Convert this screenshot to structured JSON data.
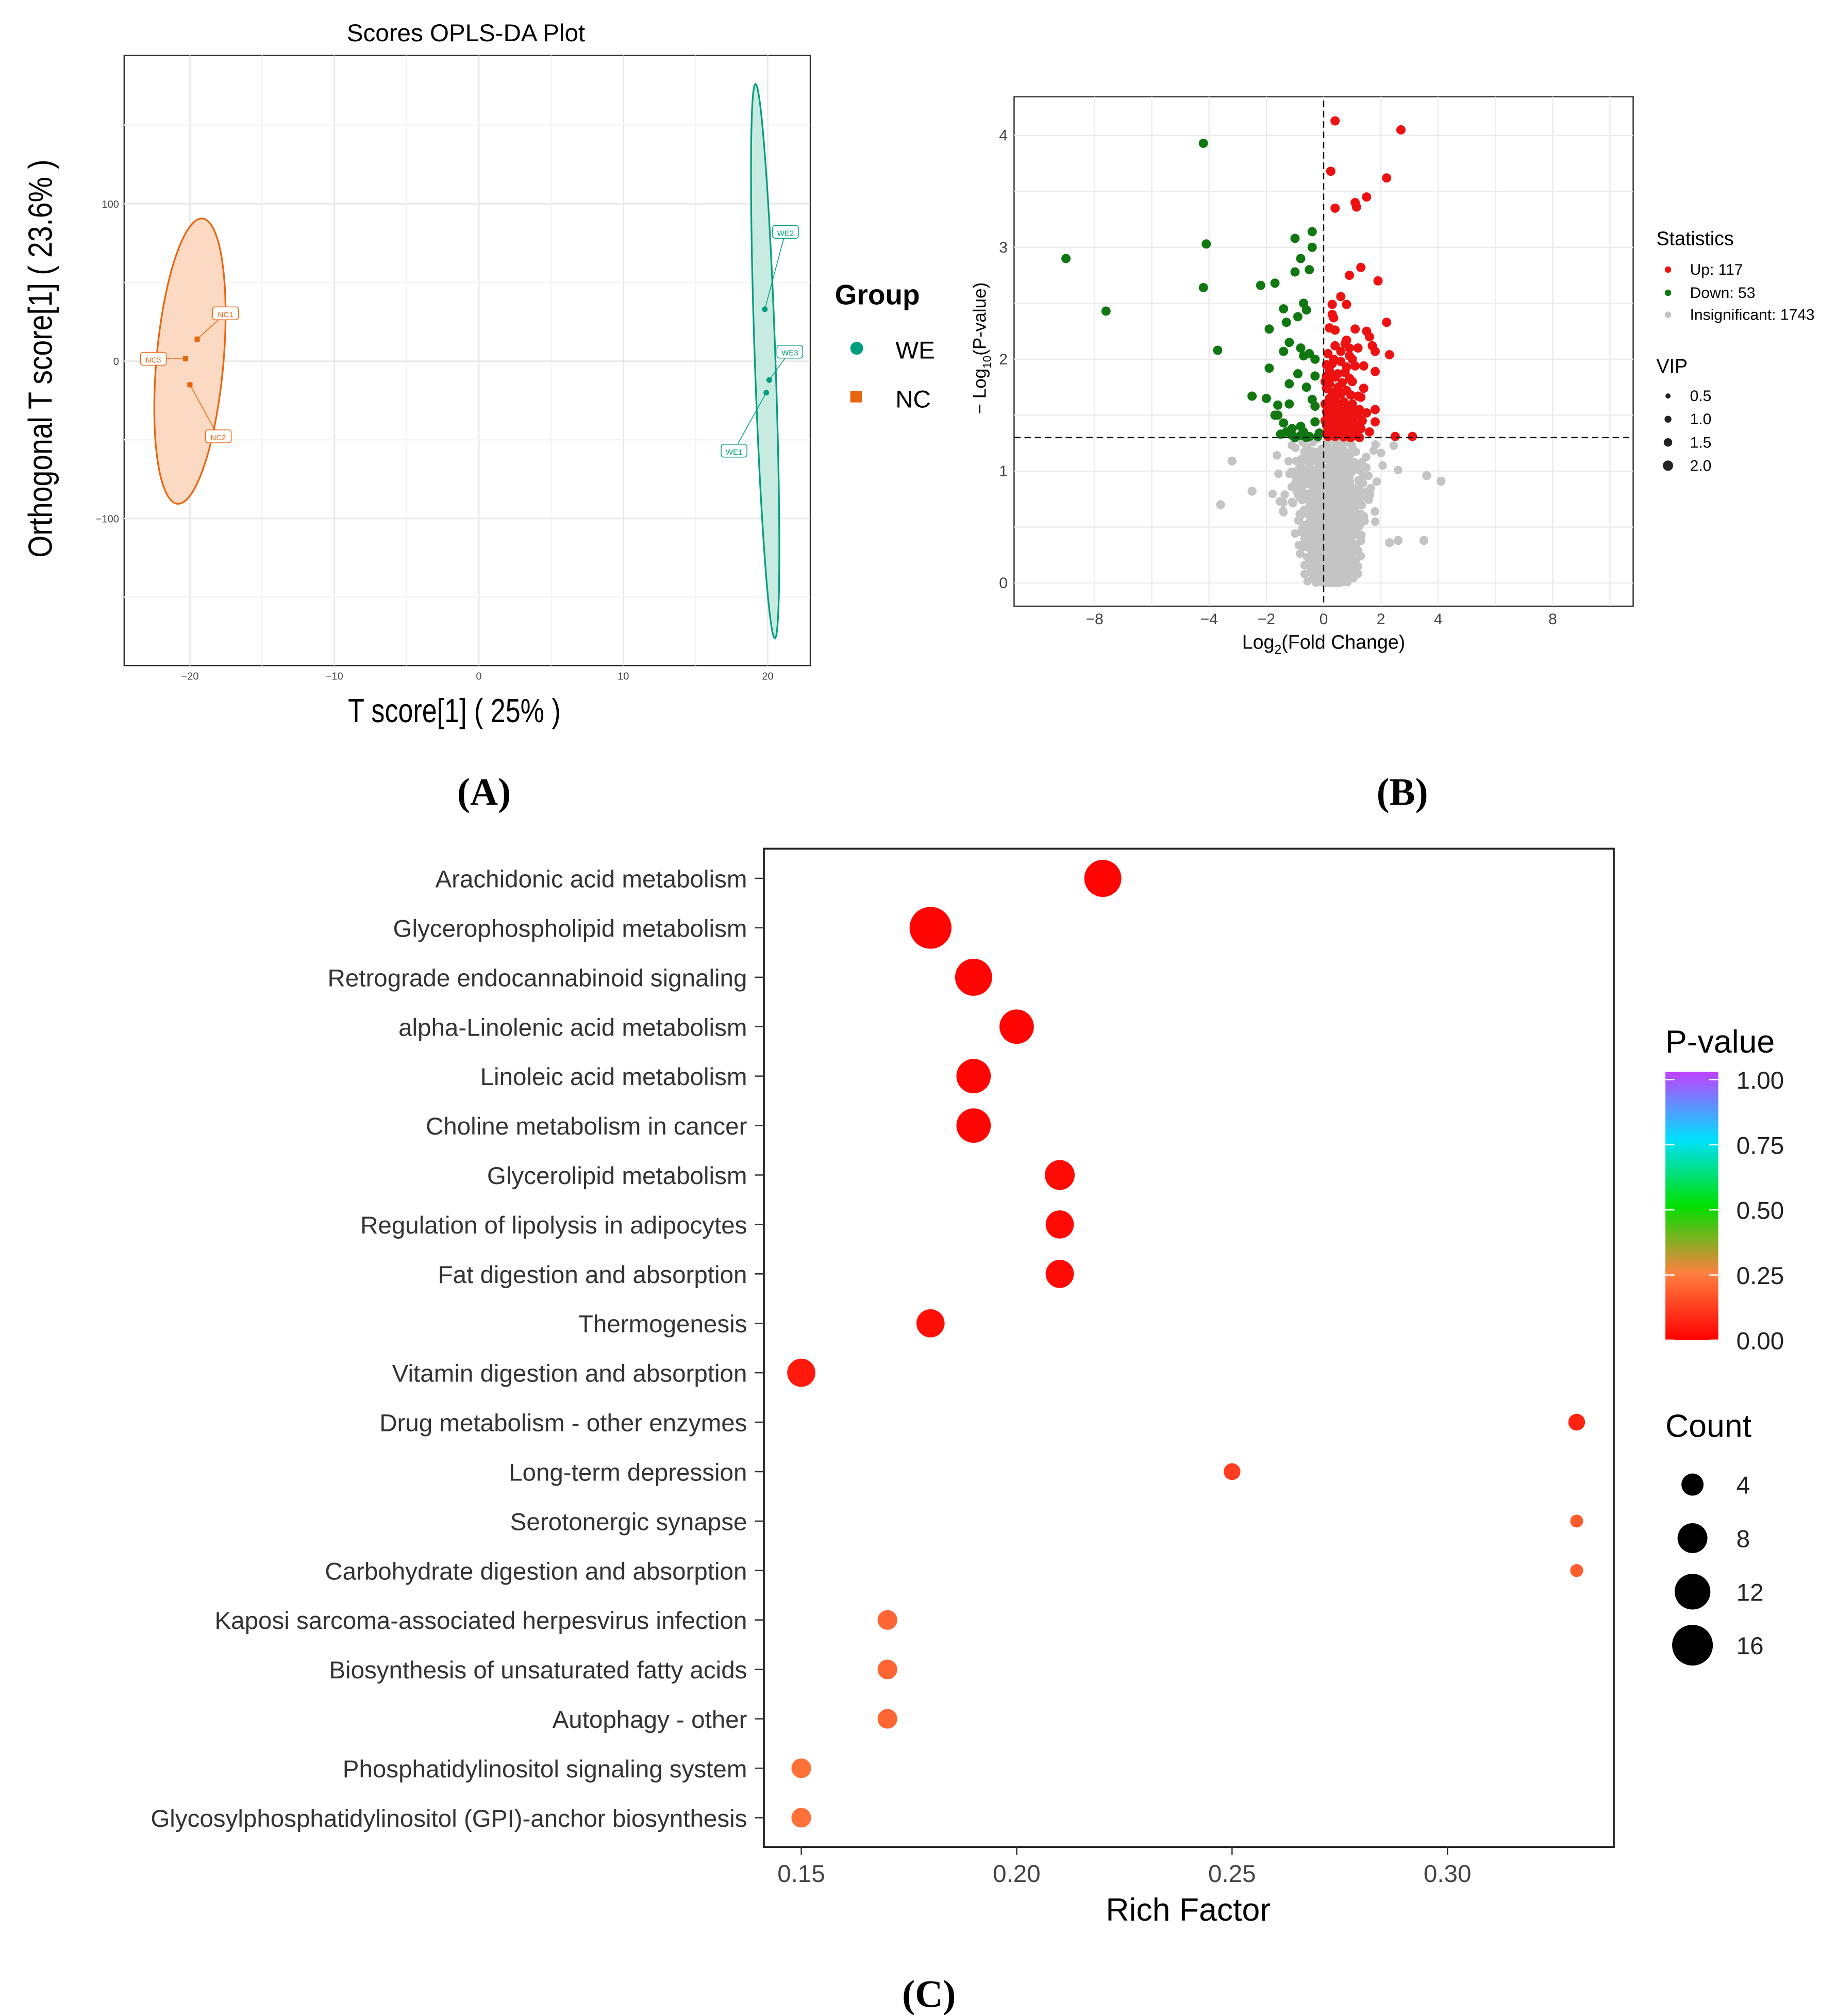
{
  "panels": {
    "a": "(A)",
    "b": "(B)",
    "c": "(C)"
  },
  "chart_data": [
    {
      "type": "scatter",
      "title": "Scores OPLS-DA Plot",
      "xlabel": "T score[1] ( 25% )",
      "ylabel": "Orthogonal T score[1] ( 23.6% )",
      "xlim": [
        -24.5,
        23
      ],
      "ylim": [
        -195,
        195
      ],
      "xticks": [
        -20,
        -10,
        0,
        10,
        20
      ],
      "yticks": [
        -100,
        0,
        100
      ],
      "legend": {
        "title": "Group",
        "placement": "right",
        "entries": [
          "WE",
          "NC"
        ]
      },
      "colors": {
        "WE": "#009e7e",
        "NC": "#e8650e"
      },
      "points": [
        {
          "label": "NC1",
          "group": "NC",
          "x": -19.5,
          "y": 14
        },
        {
          "label": "NC2",
          "group": "NC",
          "x": -20,
          "y": -15
        },
        {
          "label": "NC3",
          "group": "NC",
          "x": -20.3,
          "y": 1.5
        },
        {
          "label": "WE1",
          "group": "WE",
          "x": 19.9,
          "y": -20
        },
        {
          "label": "WE2",
          "group": "WE",
          "x": 19.8,
          "y": 33
        },
        {
          "label": "WE3",
          "group": "WE",
          "x": 20.1,
          "y": -12
        }
      ]
    },
    {
      "type": "scatter",
      "title": "",
      "xlabel": "Log2(Fold Change)",
      "ylabel": "− Log10(P-value)",
      "xlim": [
        -9.8,
        10.9
      ],
      "ylim": [
        -0.2,
        4.3
      ],
      "xticks": [
        -8,
        -4,
        -2,
        0,
        2,
        4,
        8
      ],
      "yticks": [
        0,
        1,
        2,
        3,
        4
      ],
      "thresholds": {
        "x": 0,
        "y": 1.3
      },
      "legend": {
        "title": "Statistics",
        "entries": [
          "Up: 117",
          "Down: 53",
          "Insignificant: 1743"
        ],
        "vip_title": "VIP",
        "vip_entries": [
          "0.5",
          "1.0",
          "1.5",
          "2.0"
        ]
      },
      "colors": {
        "up": "#ee1111",
        "down": "#117711",
        "insignificant": "#c4c4c4"
      },
      "counts": {
        "up": 117,
        "down": 53,
        "insignificant": 1743
      },
      "down": [
        [
          -9,
          2.9
        ],
        [
          -7.6,
          2.43
        ],
        [
          -4.2,
          3.93
        ],
        [
          -4.1,
          3.03
        ],
        [
          -4.2,
          2.64
        ],
        [
          -3.7,
          2.08
        ],
        [
          -2.2,
          2.66
        ],
        [
          -1.7,
          2.68
        ],
        [
          -1,
          3.08
        ],
        [
          -0.4,
          3.14
        ],
        [
          -0.4,
          3.0
        ],
        [
          -0.8,
          2.9
        ],
        [
          -1,
          2.78
        ],
        [
          -0.5,
          2.8
        ],
        [
          -1.4,
          2.45
        ],
        [
          -0.7,
          2.5
        ],
        [
          -0.6,
          2.44
        ],
        [
          -1.3,
          2.33
        ],
        [
          -0.9,
          2.38
        ],
        [
          -1.9,
          2.27
        ],
        [
          -1.2,
          2.15
        ],
        [
          -1.4,
          2.07
        ],
        [
          -0.8,
          2.1
        ],
        [
          -0.5,
          2.05
        ],
        [
          -0.7,
          2.03
        ],
        [
          -0.3,
          2.0
        ],
        [
          -1.9,
          1.92
        ],
        [
          -0.9,
          1.87
        ],
        [
          -0.3,
          1.85
        ],
        [
          -1.2,
          1.78
        ],
        [
          -0.6,
          1.75
        ],
        [
          -2.5,
          1.67
        ],
        [
          -2,
          1.65
        ],
        [
          -1.2,
          1.6
        ],
        [
          -1.6,
          1.59
        ],
        [
          -0.4,
          1.64
        ],
        [
          -0.3,
          1.58
        ],
        [
          -1.7,
          1.5
        ],
        [
          -1.6,
          1.5
        ],
        [
          -1.4,
          1.43
        ],
        [
          -0.3,
          1.44
        ],
        [
          -1.1,
          1.38
        ],
        [
          -0.8,
          1.4
        ],
        [
          -1.5,
          1.33
        ],
        [
          -1.1,
          1.32
        ],
        [
          -0.5,
          1.31
        ],
        [
          -0.2,
          1.31
        ],
        [
          -0.7,
          1.35
        ],
        [
          -1.0,
          1.3
        ],
        [
          -0.6,
          1.3
        ],
        [
          -0.15,
          1.34
        ],
        [
          -0.8,
          1.32
        ],
        [
          -1.3,
          1.35
        ]
      ],
      "up": [
        [
          0.4,
          4.13
        ],
        [
          2.7,
          4.05
        ],
        [
          0.25,
          3.68
        ],
        [
          2.2,
          3.62
        ],
        [
          1.5,
          3.45
        ],
        [
          1.1,
          3.4
        ],
        [
          0.4,
          3.35
        ],
        [
          1.15,
          3.36
        ],
        [
          1.3,
          2.82
        ],
        [
          0.9,
          2.75
        ],
        [
          1.9,
          2.7
        ],
        [
          0.6,
          2.56
        ],
        [
          0.3,
          2.49
        ],
        [
          0.8,
          2.49
        ],
        [
          0.3,
          2.4
        ],
        [
          0.35,
          2.37
        ],
        [
          2.2,
          2.33
        ],
        [
          0.2,
          2.28
        ],
        [
          0.4,
          2.26
        ],
        [
          1.1,
          2.27
        ],
        [
          1.5,
          2.25
        ],
        [
          1.6,
          2.2
        ],
        [
          0.8,
          2.17
        ],
        [
          0.75,
          2.14
        ],
        [
          0.4,
          2.12
        ],
        [
          0.9,
          2.1
        ],
        [
          1.2,
          2.1
        ],
        [
          1.7,
          2.12
        ],
        [
          1.8,
          2.07
        ],
        [
          0.9,
          2.03
        ],
        [
          2.3,
          2.04
        ],
        [
          1.0,
          2.0
        ],
        [
          0.6,
          1.98
        ],
        [
          0.1,
          1.95
        ],
        [
          0.3,
          1.96
        ],
        [
          0.8,
          1.93
        ],
        [
          1.1,
          1.94
        ],
        [
          1.4,
          1.94
        ],
        [
          0.2,
          1.9
        ],
        [
          1.8,
          1.89
        ],
        [
          0.5,
          1.87
        ],
        [
          0.75,
          1.88
        ],
        [
          0.1,
          1.85
        ],
        [
          0.4,
          1.84
        ],
        [
          0.9,
          1.83
        ],
        [
          1.0,
          1.8
        ],
        [
          0.2,
          1.78
        ],
        [
          0.5,
          1.75
        ],
        [
          0.1,
          1.74
        ],
        [
          0.8,
          1.72
        ],
        [
          0.3,
          1.7
        ],
        [
          0.6,
          1.69
        ],
        [
          0.95,
          1.68
        ],
        [
          1.2,
          1.67
        ],
        [
          1.3,
          1.66
        ],
        [
          0.4,
          1.63
        ],
        [
          0.7,
          1.62
        ],
        [
          1.0,
          1.6
        ],
        [
          0.2,
          1.58
        ],
        [
          0.5,
          1.57
        ],
        [
          1.8,
          1.55
        ],
        [
          0.1,
          1.53
        ],
        [
          0.3,
          1.52
        ],
        [
          0.6,
          1.51
        ],
        [
          0.9,
          1.5
        ],
        [
          1.2,
          1.5
        ],
        [
          1.5,
          1.52
        ],
        [
          0.15,
          1.48
        ],
        [
          0.45,
          1.47
        ],
        [
          0.7,
          1.46
        ],
        [
          1.0,
          1.46
        ],
        [
          0.2,
          1.44
        ],
        [
          0.55,
          1.43
        ],
        [
          0.8,
          1.43
        ],
        [
          1.1,
          1.42
        ],
        [
          1.8,
          1.44
        ],
        [
          0.1,
          1.41
        ],
        [
          0.35,
          1.4
        ],
        [
          0.65,
          1.39
        ],
        [
          0.9,
          1.39
        ],
        [
          1.3,
          1.38
        ],
        [
          0.2,
          1.37
        ],
        [
          0.5,
          1.36
        ],
        [
          0.75,
          1.36
        ],
        [
          1.05,
          1.35
        ],
        [
          1.6,
          1.35
        ],
        [
          0.1,
          1.34
        ],
        [
          0.3,
          1.33
        ],
        [
          0.6,
          1.33
        ],
        [
          0.85,
          1.32
        ],
        [
          1.15,
          1.32
        ],
        [
          2.5,
          1.31
        ],
        [
          3.1,
          1.31
        ],
        [
          0.15,
          1.31
        ],
        [
          0.4,
          1.31
        ],
        [
          0.7,
          1.305
        ],
        [
          0.95,
          1.3
        ],
        [
          1.25,
          1.3
        ],
        [
          0.05,
          1.45
        ],
        [
          0.05,
          1.6
        ],
        [
          0.05,
          1.8
        ],
        [
          0.25,
          1.62
        ],
        [
          0.55,
          1.55
        ],
        [
          0.85,
          1.58
        ],
        [
          1.35,
          1.45
        ],
        [
          0.45,
          1.71
        ],
        [
          0.65,
          1.79
        ],
        [
          1.25,
          1.55
        ],
        [
          0.35,
          2.0
        ],
        [
          0.15,
          2.05
        ],
        [
          0.6,
          2.07
        ],
        [
          1.4,
          1.74
        ],
        [
          0.25,
          1.85
        ],
        [
          0.7,
          1.53
        ],
        [
          1.05,
          1.54
        ],
        [
          0.4,
          1.5
        ],
        [
          0.2,
          1.65
        ]
      ],
      "insignificant_outliers": [
        [
          -3.2,
          1.09
        ],
        [
          -2.5,
          0.82
        ],
        [
          -3.6,
          0.7
        ],
        [
          3.6,
          0.96
        ],
        [
          4.1,
          0.91
        ],
        [
          3.5,
          0.38
        ],
        [
          2.6,
          0.38
        ],
        [
          2.3,
          0.36
        ]
      ]
    },
    {
      "type": "scatter",
      "title": "",
      "xlabel": "Rich Factor",
      "ylabel": "",
      "xlim": [
        0.141,
        0.339
      ],
      "xticks": [
        0.15,
        0.2,
        0.25,
        0.3
      ],
      "xtick_labels": [
        "0.15",
        "0.20",
        "0.25",
        "0.30"
      ],
      "color_legend": {
        "title": "P-value",
        "ticks": [
          "1.00",
          "0.75",
          "0.50",
          "0.25",
          "0.00"
        ]
      },
      "size_legend": {
        "title": "Count",
        "entries": [
          4,
          8,
          12,
          16
        ],
        "labels": [
          "4",
          "8",
          "12",
          "16"
        ]
      },
      "pathways": [
        {
          "name": "Arachidonic acid metabolism",
          "rich": 0.22,
          "count": 13,
          "p": 0.01
        },
        {
          "name": "Glycerophospholipid metabolism",
          "rich": 0.18,
          "count": 17,
          "p": 0.01
        },
        {
          "name": "Retrograde endocannabinoid signaling",
          "rich": 0.19,
          "count": 13,
          "p": 0.01
        },
        {
          "name": "alpha-Linolenic acid metabolism",
          "rich": 0.2,
          "count": 11,
          "p": 0.01
        },
        {
          "name": "Linoleic acid metabolism",
          "rich": 0.19,
          "count": 11,
          "p": 0.01
        },
        {
          "name": "Choline metabolism in cancer",
          "rich": 0.19,
          "count": 11,
          "p": 0.01
        },
        {
          "name": "Glycerolipid metabolism",
          "rich": 0.21,
          "count": 8,
          "p": 0.02
        },
        {
          "name": "Regulation of lipolysis in adipocytes",
          "rich": 0.21,
          "count": 7,
          "p": 0.02
        },
        {
          "name": "Fat digestion and absorption",
          "rich": 0.21,
          "count": 7,
          "p": 0.02
        },
        {
          "name": "Thermogenesis",
          "rich": 0.18,
          "count": 7,
          "p": 0.03
        },
        {
          "name": "Vitamin digestion and absorption",
          "rich": 0.15,
          "count": 7,
          "p": 0.05
        },
        {
          "name": "Drug metabolism - other enzymes",
          "rich": 0.33,
          "count": 2,
          "p": 0.07
        },
        {
          "name": "Long-term depression",
          "rich": 0.25,
          "count": 2,
          "p": 0.12
        },
        {
          "name": "Serotonergic synapse",
          "rich": 0.33,
          "count": 1,
          "p": 0.18
        },
        {
          "name": "Carbohydrate digestion and absorption",
          "rich": 0.33,
          "count": 1,
          "p": 0.18
        },
        {
          "name": "Kaposi sarcoma-associated herpesvirus infection",
          "rich": 0.17,
          "count": 3,
          "p": 0.2
        },
        {
          "name": "Biosynthesis of unsaturated fatty acids",
          "rich": 0.17,
          "count": 3,
          "p": 0.2
        },
        {
          "name": "Autophagy - other",
          "rich": 0.17,
          "count": 3,
          "p": 0.2
        },
        {
          "name": "Phosphatidylinositol signaling system",
          "rich": 0.15,
          "count": 3,
          "p": 0.22
        },
        {
          "name": "Glycosylphosphatidylinositol (GPI)-anchor biosynthesis",
          "rich": 0.15,
          "count": 3,
          "p": 0.22
        }
      ]
    }
  ]
}
